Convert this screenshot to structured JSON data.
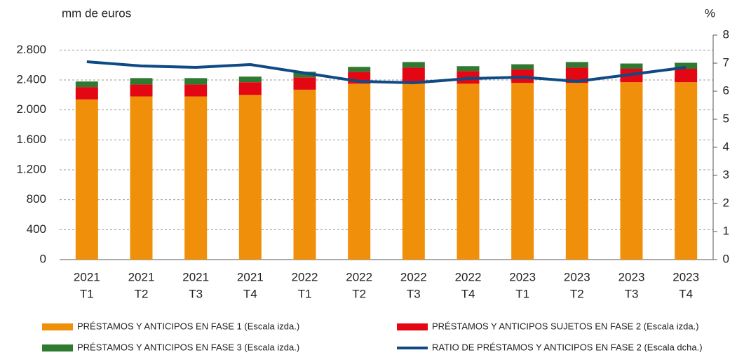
{
  "chart_data": {
    "type": "bar",
    "stacked": true,
    "y_label": "mm de euros",
    "y2_label": "%",
    "categories": [
      [
        "2021",
        "T1"
      ],
      [
        "2021",
        "T2"
      ],
      [
        "2021",
        "T3"
      ],
      [
        "2021",
        "T4"
      ],
      [
        "2022",
        "T1"
      ],
      [
        "2022",
        "T2"
      ],
      [
        "2022",
        "T3"
      ],
      [
        "2022",
        "T4"
      ],
      [
        "2023",
        "T1"
      ],
      [
        "2023",
        "T2"
      ],
      [
        "2023",
        "T3"
      ],
      [
        "2023",
        "T4"
      ]
    ],
    "series": [
      {
        "name": "PRÉSTAMOS Y ANTICIPOS EN FASE 1 (Escala izda.)",
        "color": "#f0900a",
        "values": [
          2140,
          2180,
          2180,
          2200,
          2270,
          2350,
          2350,
          2350,
          2360,
          2360,
          2370,
          2370
        ]
      },
      {
        "name": "PRÉSTAMOS Y ANTICIPOS SUJETOS EN FASE 2 (Escala izda.)",
        "color": "#e30613",
        "values": [
          165,
          160,
          160,
          170,
          165,
          160,
          215,
          170,
          180,
          205,
          180,
          180
        ]
      },
      {
        "name": "PRÉSTAMOS Y ANTICIPOS EN FASE 3 (Escala izda.)",
        "color": "#2f7a30",
        "values": [
          75,
          85,
          85,
          75,
          75,
          65,
          75,
          65,
          70,
          75,
          70,
          80
        ]
      },
      {
        "name": "RATIO DE PRÉSTAMOS Y ANTICIPOS EN FASE 2 (Escala dcha.)",
        "color": "#0f4a84",
        "axis": "y2",
        "values": [
          7.05,
          6.9,
          6.85,
          6.95,
          6.65,
          6.35,
          6.3,
          6.45,
          6.5,
          6.35,
          6.6,
          6.85
        ]
      }
    ],
    "ylim": [
      0,
      3000
    ],
    "yticks": [
      0,
      400,
      800,
      {
        "value": 1200,
        "label": "1.200"
      },
      {
        "value": 1600,
        "label": "1.600"
      },
      {
        "value": 2000,
        "label": "2.000"
      },
      {
        "value": 2400,
        "label": "2.400"
      },
      {
        "value": 2800,
        "label": "2.800"
      }
    ],
    "y2lim": [
      0,
      8
    ],
    "y2ticks": [
      0,
      1,
      2,
      3,
      4,
      5,
      6,
      7,
      8
    ],
    "grid": true
  }
}
